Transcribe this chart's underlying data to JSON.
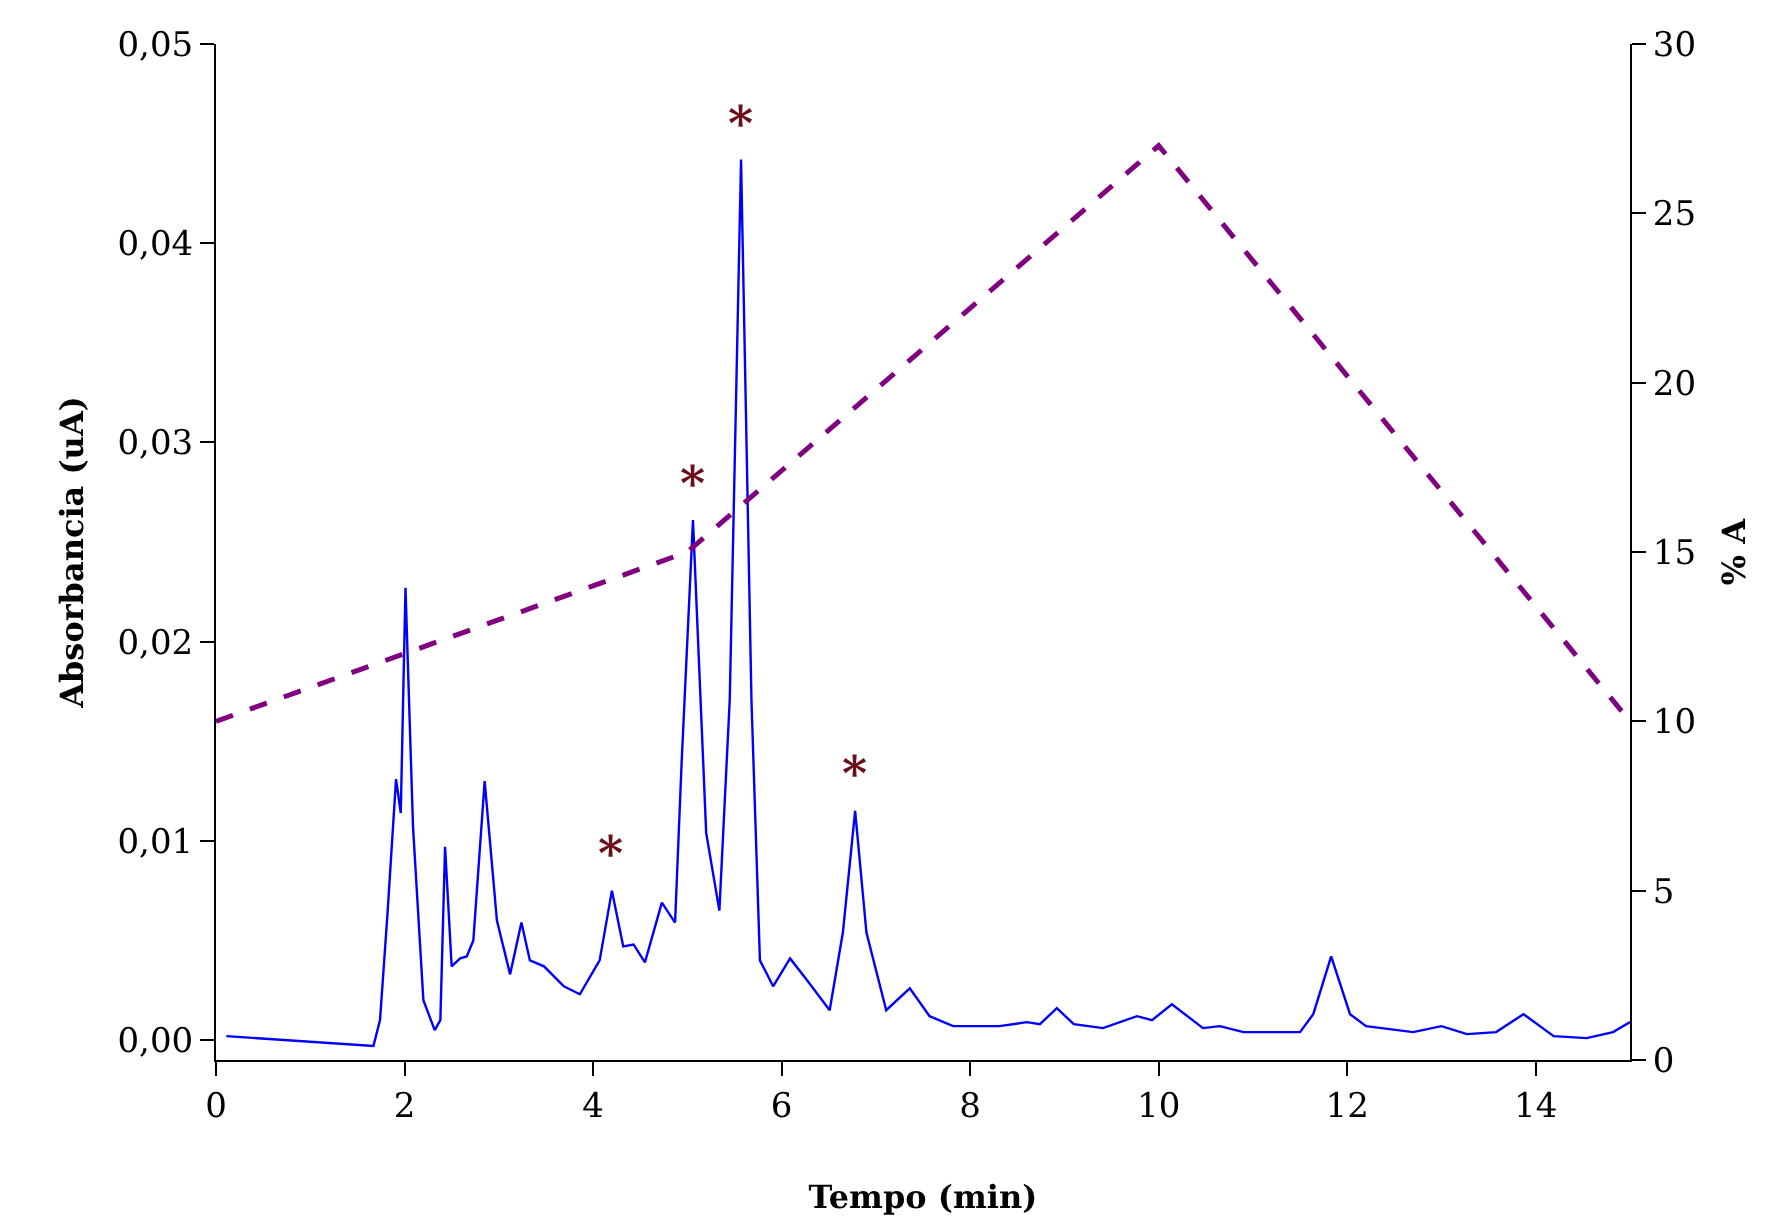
{
  "chart_data": {
    "type": "line",
    "xlabel": "Tempo (min)",
    "ylabel": "Absorbancia (uA)",
    "y2label": "% A",
    "xlim": [
      0,
      15
    ],
    "xticks": [
      0,
      2,
      4,
      6,
      8,
      10,
      12,
      14
    ],
    "ylim": [
      -0.001,
      0.05
    ],
    "yticks": [
      {
        "value": 0,
        "label": "0,00"
      },
      {
        "value": 0.01,
        "label": "0,01"
      },
      {
        "value": 0.02,
        "label": "0,02"
      },
      {
        "value": 0.03,
        "label": "0,03"
      },
      {
        "value": 0.04,
        "label": "0,04"
      },
      {
        "value": 0.05,
        "label": "0,05"
      }
    ],
    "y2lim": [
      0,
      30
    ],
    "y2ticks": [
      0,
      5,
      10,
      15,
      20,
      25,
      30
    ],
    "series": [
      {
        "color": "#0000ff",
        "line_style": "solid",
        "x": [
          0.11,
          1.67,
          1.74,
          1.82,
          1.91,
          1.96,
          2.01,
          2.09,
          2.2,
          2.32,
          2.38,
          2.43,
          2.5,
          2.59,
          2.66,
          2.73,
          2.85,
          2.98,
          3.12,
          3.24,
          3.33,
          3.48,
          3.69,
          3.86,
          4.07,
          4.2,
          4.32,
          4.43,
          4.55,
          4.73,
          4.87,
          4.94,
          5.06,
          5.2,
          5.34,
          5.45,
          5.57,
          5.68,
          5.77,
          5.91,
          6.09,
          6.27,
          6.51,
          6.65,
          6.78,
          6.9,
          7.11,
          7.36,
          7.57,
          7.82,
          8.31,
          8.6,
          8.74,
          8.92,
          9.1,
          9.41,
          9.77,
          9.93,
          10.14,
          10.47,
          10.65,
          10.9,
          11.5,
          11.64,
          11.83,
          12.03,
          12.2,
          12.7,
          13.0,
          13.27,
          13.58,
          13.87,
          14.19,
          14.54,
          14.82,
          15.0
        ],
        "values": [
          0.0002,
          -0.0003,
          0.001,
          0.0064,
          0.0131,
          0.0114,
          0.0227,
          0.0107,
          0.002,
          0.0005,
          0.001,
          0.0097,
          0.0037,
          0.0041,
          0.0042,
          0.005,
          0.013,
          0.006,
          0.0033,
          0.0059,
          0.004,
          0.0037,
          0.0027,
          0.0023,
          0.004,
          0.0075,
          0.0047,
          0.0048,
          0.0039,
          0.0069,
          0.0059,
          0.014,
          0.0261,
          0.0104,
          0.0065,
          0.0171,
          0.0442,
          0.0171,
          0.004,
          0.0027,
          0.0041,
          0.003,
          0.0015,
          0.0054,
          0.0115,
          0.0054,
          0.0015,
          0.0026,
          0.0012,
          0.0007,
          0.0007,
          0.0009,
          0.0008,
          0.0016,
          0.0008,
          0.0006,
          0.0012,
          0.001,
          0.0018,
          0.0006,
          0.0007,
          0.0004,
          0.0004,
          0.0013,
          0.0042,
          0.0013,
          0.0007,
          0.0004,
          0.0007,
          0.0003,
          0.0004,
          0.0013,
          0.0002,
          0.0001,
          0.0004,
          0.0009
        ]
      },
      {
        "axis": "y2",
        "color": "#800080",
        "line_style": "dashed",
        "x": [
          0,
          5,
          10,
          15
        ],
        "values": [
          10,
          15,
          27,
          10
        ]
      }
    ],
    "annotations": [
      {
        "text": "*",
        "x": 4.2,
        "y": 0.0075
      },
      {
        "text": "*",
        "x": 5.06,
        "y": 0.0261
      },
      {
        "text": "*",
        "x": 5.57,
        "y": 0.0442
      },
      {
        "text": "*",
        "x": 6.78,
        "y": 0.0115
      }
    ]
  }
}
